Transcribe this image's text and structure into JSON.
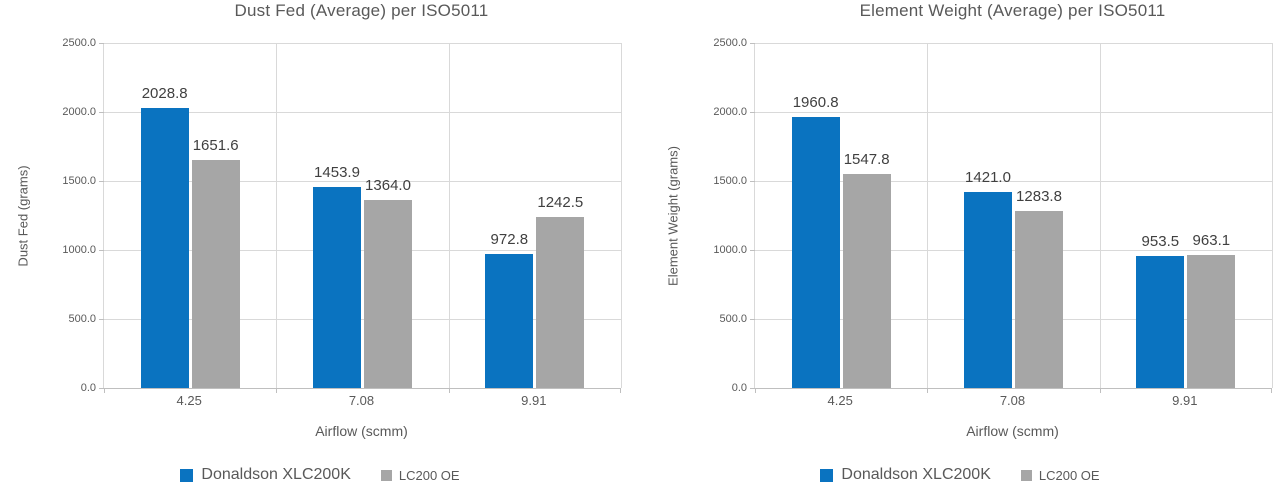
{
  "page": {
    "background": "#ffffff"
  },
  "colors": {
    "series1": "#0a73c0",
    "series2": "#a6a6a6",
    "gridline": "#d9d9d9",
    "axis_line": "#bfbfbf",
    "text_gray": "#595959",
    "data_label": "#404040"
  },
  "chart_data": [
    {
      "type": "bar",
      "title": "Dust Fed (Average) per ISO5011",
      "xlabel": "Airflow (scmm)",
      "ylabel": "Dust Fed (grams)",
      "categories": [
        "4.25",
        "7.08",
        "9.91"
      ],
      "series": [
        {
          "name": "Donaldson XLC200K",
          "color": "#0a73c0",
          "values": [
            2028.8,
            1453.9,
            972.8
          ],
          "labels": [
            "2028.8",
            "1453.9",
            "972.8"
          ]
        },
        {
          "name": "LC200 OE",
          "color": "#a6a6a6",
          "values": [
            1651.6,
            1364.0,
            1242.5
          ],
          "labels": [
            "1651.6",
            "1364.0",
            "1242.5"
          ]
        }
      ],
      "ylim": [
        0,
        2500
      ],
      "y_ticks": [
        "2500.0",
        "2000.0",
        "1500.0",
        "1000.0",
        "500.0",
        "0.0"
      ],
      "grid": true,
      "legend_position": "bottom"
    },
    {
      "type": "bar",
      "title": "Element Weight (Average) per ISO5011",
      "xlabel": "Airflow (scmm)",
      "ylabel": "Element Weight (grams)",
      "categories": [
        "4.25",
        "7.08",
        "9.91"
      ],
      "series": [
        {
          "name": "Donaldson XLC200K",
          "color": "#0a73c0",
          "values": [
            1960.8,
            1421.0,
            953.5
          ],
          "labels": [
            "1960.8",
            "1421.0",
            "953.5"
          ]
        },
        {
          "name": "LC200 OE",
          "color": "#a6a6a6",
          "values": [
            1547.8,
            1283.8,
            963.1
          ],
          "labels": [
            "1547.8",
            "1283.8",
            "963.1"
          ]
        }
      ],
      "ylim": [
        0,
        2500
      ],
      "y_ticks": [
        "2500.0",
        "2000.0",
        "1500.0",
        "1000.0",
        "500.0",
        "0.0"
      ],
      "grid": true,
      "legend_position": "bottom"
    }
  ]
}
